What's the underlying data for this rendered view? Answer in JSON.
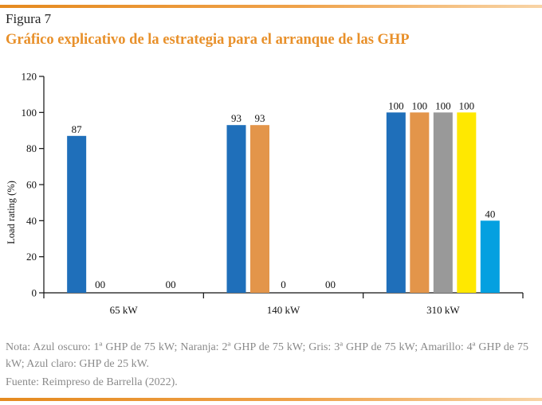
{
  "figure": {
    "label": "Figura 7",
    "title": "Gráfico explicativo de la estrategia para el arranque de las GHP",
    "note": "Nota: Azul oscuro: 1ª GHP de 75 kW; Naranja: 2ª GHP de 75 kW; Gris: 3ª GHP de 75 kW; Amarillo: 4ª GHP de 75 kW; Azul claro: GHP de 25 kW.",
    "source": "Fuente: Reimpreso de Barrella (2022)."
  },
  "chart_data": {
    "type": "bar",
    "title": "",
    "xlabel": "",
    "ylabel": "Load rating (%)",
    "ylim": [
      0,
      120
    ],
    "yticks": [
      0,
      20,
      40,
      60,
      80,
      100,
      120
    ],
    "grid": false,
    "categories": [
      "65 kW",
      "140 kW",
      "310 kW"
    ],
    "series": [
      {
        "color": "#1f6fba",
        "values": [
          87,
          93,
          100
        ],
        "labels": [
          "87",
          "93",
          "100"
        ]
      },
      {
        "color": "#e3954a",
        "values": [
          0,
          93,
          100
        ],
        "labels": [
          "00",
          "93",
          "100"
        ]
      },
      {
        "color": "#999999",
        "values": [
          null,
          0,
          100
        ],
        "labels": [
          null,
          "0",
          "100"
        ]
      },
      {
        "color": "#ffe800",
        "values": [
          null,
          null,
          100
        ],
        "labels": [
          null,
          null,
          "100"
        ]
      },
      {
        "color": "#04a0e0",
        "values": [
          0,
          0,
          40
        ],
        "labels": [
          "00",
          "00",
          "40"
        ]
      }
    ]
  }
}
